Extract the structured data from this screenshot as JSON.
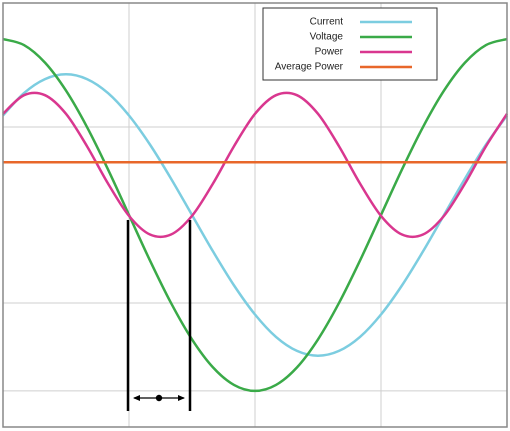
{
  "chart_data": {
    "type": "line",
    "x": [
      0,
      15,
      30,
      45,
      60,
      75,
      90,
      105,
      120,
      135,
      150,
      165,
      180,
      195,
      210,
      225,
      240,
      255,
      270,
      285,
      300,
      315,
      330,
      345,
      360
    ],
    "series": [
      {
        "name": "Current",
        "color": "#7ccde0",
        "values": [
          1.131,
          1.386,
          1.545,
          1.6,
          1.545,
          1.386,
          1.131,
          0.8,
          0.414,
          0,
          -0.414,
          -0.8,
          -1.131,
          -1.386,
          -1.545,
          -1.6,
          -1.545,
          -1.386,
          -1.131,
          -0.8,
          -0.414,
          0,
          0.414,
          0.8,
          1.131
        ]
      },
      {
        "name": "Voltage",
        "color": "#3aaa48",
        "values": [
          2,
          1.932,
          1.732,
          1.414,
          1,
          0.518,
          0,
          -0.518,
          -1,
          -1.414,
          -1.732,
          -1.932,
          -2,
          -1.932,
          -1.732,
          -1.414,
          -1,
          -0.518,
          0,
          0.518,
          1,
          1.414,
          1.732,
          1.932,
          2
        ]
      },
      {
        "name": "Power",
        "color": "#d9378f",
        "values": [
          1.15,
          1.362,
          1.362,
          1.15,
          0.782,
          0.358,
          -0.01,
          -0.222,
          -0.222,
          -0.01,
          0.358,
          0.782,
          1.15,
          1.362,
          1.362,
          1.15,
          0.782,
          0.358,
          -0.01,
          -0.222,
          -0.222,
          -0.01,
          0.358,
          0.782,
          1.15
        ]
      },
      {
        "name": "Average Power",
        "color": "#e8672a",
        "values": [
          0.6,
          0.6,
          0.6,
          0.6,
          0.6,
          0.6,
          0.6,
          0.6,
          0.6,
          0.6,
          0.6,
          0.6,
          0.6,
          0.6,
          0.6,
          0.6,
          0.6,
          0.6,
          0.6,
          0.6,
          0.6,
          0.6,
          0.6,
          0.6,
          0.6
        ]
      }
    ],
    "xlim": [
      0,
      360
    ],
    "ylim": [
      -2.41,
      2.41
    ],
    "xticks": [
      90,
      180,
      270
    ],
    "yticks": [
      -2,
      -1,
      1
    ],
    "grid": true
  }
}
